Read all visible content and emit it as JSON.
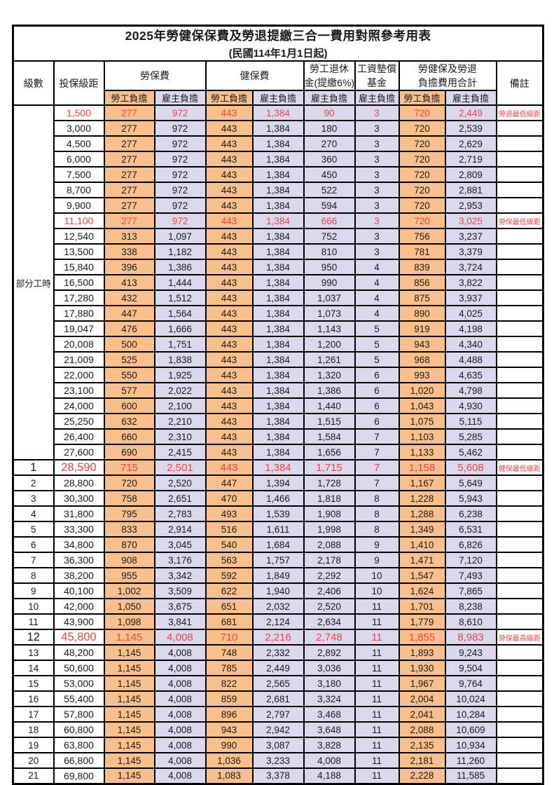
{
  "title": "2025年勞健保保費及勞退提繳三合一費用對照參考用表",
  "subtitle": "(民國114年1月1日起)",
  "colors": {
    "employee_share_bg": "#fac08c",
    "employer_share_bg": "#dbd8ee",
    "highlight_red": "#ef4444",
    "border": "#000000"
  },
  "header": {
    "level": "級數",
    "salary_bracket": "投保級距",
    "labor_insurance": "勞保費",
    "health_insurance": "健保費",
    "pension_line1": "勞工退休",
    "pension_line2": "金(提繳6%)",
    "wage_fund_line1": "工資墊償",
    "wage_fund_line2": "基金",
    "total_line1": "勞健保及勞退",
    "total_line2": "負擔費用合計",
    "note": "備註",
    "employee_share": "勞工負擔",
    "employer_share": "雇主負擔"
  },
  "part_time": {
    "label": "部分工時",
    "rowspan": 23
  },
  "rows": [
    {
      "salary": "1,500",
      "values": [
        "277",
        "972",
        "443",
        "1,384",
        "90",
        "3",
        "720",
        "2,449"
      ],
      "note": "勞退最低級距",
      "red": true
    },
    {
      "salary": "3,000",
      "values": [
        "277",
        "972",
        "443",
        "1,384",
        "180",
        "3",
        "720",
        "2,539"
      ],
      "note": ""
    },
    {
      "salary": "4,500",
      "values": [
        "277",
        "972",
        "443",
        "1,384",
        "270",
        "3",
        "720",
        "2,629"
      ],
      "note": ""
    },
    {
      "salary": "6,000",
      "values": [
        "277",
        "972",
        "443",
        "1,384",
        "360",
        "3",
        "720",
        "2,719"
      ],
      "note": ""
    },
    {
      "salary": "7,500",
      "values": [
        "277",
        "972",
        "443",
        "1,384",
        "450",
        "3",
        "720",
        "2,809"
      ],
      "note": ""
    },
    {
      "salary": "8,700",
      "values": [
        "277",
        "972",
        "443",
        "1,384",
        "522",
        "3",
        "720",
        "2,881"
      ],
      "note": ""
    },
    {
      "salary": "9,900",
      "values": [
        "277",
        "972",
        "443",
        "1,384",
        "594",
        "3",
        "720",
        "2,953"
      ],
      "note": ""
    },
    {
      "salary": "11,100",
      "values": [
        "277",
        "972",
        "443",
        "1,384",
        "666",
        "3",
        "720",
        "3,025"
      ],
      "note": "勞保最低級距",
      "red": true
    },
    {
      "salary": "12,540",
      "values": [
        "313",
        "1,097",
        "443",
        "1,384",
        "752",
        "3",
        "756",
        "3,237"
      ],
      "note": ""
    },
    {
      "salary": "13,500",
      "values": [
        "338",
        "1,182",
        "443",
        "1,384",
        "810",
        "3",
        "781",
        "3,379"
      ],
      "note": ""
    },
    {
      "salary": "15,840",
      "values": [
        "396",
        "1,386",
        "443",
        "1,384",
        "950",
        "4",
        "839",
        "3,724"
      ],
      "note": ""
    },
    {
      "salary": "16,500",
      "values": [
        "413",
        "1,444",
        "443",
        "1,384",
        "990",
        "4",
        "856",
        "3,822"
      ],
      "note": ""
    },
    {
      "salary": "17,280",
      "values": [
        "432",
        "1,512",
        "443",
        "1,384",
        "1,037",
        "4",
        "875",
        "3,937"
      ],
      "note": ""
    },
    {
      "salary": "17,880",
      "values": [
        "447",
        "1,564",
        "443",
        "1,384",
        "1,073",
        "4",
        "890",
        "4,025"
      ],
      "note": ""
    },
    {
      "salary": "19,047",
      "values": [
        "476",
        "1,666",
        "443",
        "1,384",
        "1,143",
        "5",
        "919",
        "4,198"
      ],
      "note": ""
    },
    {
      "salary": "20,008",
      "values": [
        "500",
        "1,751",
        "443",
        "1,384",
        "1,200",
        "5",
        "943",
        "4,340"
      ],
      "note": ""
    },
    {
      "salary": "21,009",
      "values": [
        "525",
        "1,838",
        "443",
        "1,384",
        "1,261",
        "5",
        "968",
        "4,488"
      ],
      "note": ""
    },
    {
      "salary": "22,000",
      "values": [
        "550",
        "1,925",
        "443",
        "1,384",
        "1,320",
        "6",
        "993",
        "4,635"
      ],
      "note": ""
    },
    {
      "salary": "23,100",
      "values": [
        "577",
        "2,022",
        "443",
        "1,384",
        "1,386",
        "6",
        "1,020",
        "4,798"
      ],
      "note": ""
    },
    {
      "salary": "24,000",
      "values": [
        "600",
        "2,100",
        "443",
        "1,384",
        "1,440",
        "6",
        "1,043",
        "4,930"
      ],
      "note": ""
    },
    {
      "salary": "25,250",
      "values": [
        "632",
        "2,210",
        "443",
        "1,384",
        "1,515",
        "6",
        "1,075",
        "5,115"
      ],
      "note": ""
    },
    {
      "salary": "26,400",
      "values": [
        "660",
        "2,310",
        "443",
        "1,384",
        "1,584",
        "7",
        "1,103",
        "5,285"
      ],
      "note": ""
    },
    {
      "salary": "27,600",
      "values": [
        "690",
        "2,415",
        "443",
        "1,384",
        "1,656",
        "7",
        "1,133",
        "5,462"
      ],
      "note": ""
    },
    {
      "level": "1",
      "salary": "28,590",
      "values": [
        "715",
        "2,501",
        "443",
        "1,384",
        "1,715",
        "7",
        "1,158",
        "5,608"
      ],
      "note": "健保最低級距",
      "red": true,
      "big": true
    },
    {
      "level": "2",
      "salary": "28,800",
      "values": [
        "720",
        "2,520",
        "447",
        "1,394",
        "1,728",
        "7",
        "1,167",
        "5,649"
      ],
      "note": ""
    },
    {
      "level": "3",
      "salary": "30,300",
      "values": [
        "758",
        "2,651",
        "470",
        "1,466",
        "1,818",
        "8",
        "1,228",
        "5,943"
      ],
      "note": ""
    },
    {
      "level": "4",
      "salary": "31,800",
      "values": [
        "795",
        "2,783",
        "493",
        "1,539",
        "1,908",
        "8",
        "1,288",
        "6,238"
      ],
      "note": ""
    },
    {
      "level": "5",
      "salary": "33,300",
      "values": [
        "833",
        "2,914",
        "516",
        "1,611",
        "1,998",
        "8",
        "1,349",
        "6,531"
      ],
      "note": ""
    },
    {
      "level": "6",
      "salary": "34,800",
      "values": [
        "870",
        "3,045",
        "540",
        "1,684",
        "2,088",
        "9",
        "1,410",
        "6,826"
      ],
      "note": ""
    },
    {
      "level": "7",
      "salary": "36,300",
      "values": [
        "908",
        "3,176",
        "563",
        "1,757",
        "2,178",
        "9",
        "1,471",
        "7,120"
      ],
      "note": ""
    },
    {
      "level": "8",
      "salary": "38,200",
      "values": [
        "955",
        "3,342",
        "592",
        "1,849",
        "2,292",
        "10",
        "1,547",
        "7,493"
      ],
      "note": ""
    },
    {
      "level": "9",
      "salary": "40,100",
      "values": [
        "1,002",
        "3,509",
        "622",
        "1,940",
        "2,406",
        "10",
        "1,624",
        "7,865"
      ],
      "note": ""
    },
    {
      "level": "10",
      "salary": "42,000",
      "values": [
        "1,050",
        "3,675",
        "651",
        "2,032",
        "2,520",
        "11",
        "1,701",
        "8,238"
      ],
      "note": ""
    },
    {
      "level": "11",
      "salary": "43,900",
      "values": [
        "1,098",
        "3,841",
        "681",
        "2,124",
        "2,634",
        "11",
        "1,779",
        "8,610"
      ],
      "note": ""
    },
    {
      "level": "12",
      "salary": "45,800",
      "values": [
        "1,145",
        "4,008",
        "710",
        "2,216",
        "2,748",
        "11",
        "1,855",
        "8,983"
      ],
      "note": "勞保最高級距",
      "red": true,
      "big": true
    },
    {
      "level": "13",
      "salary": "48,200",
      "values": [
        "1,145",
        "4,008",
        "748",
        "2,332",
        "2,892",
        "11",
        "1,893",
        "9,243"
      ],
      "note": ""
    },
    {
      "level": "14",
      "salary": "50,600",
      "values": [
        "1,145",
        "4,008",
        "785",
        "2,449",
        "3,036",
        "11",
        "1,930",
        "9,504"
      ],
      "note": ""
    },
    {
      "level": "15",
      "salary": "53,000",
      "values": [
        "1,145",
        "4,008",
        "822",
        "2,565",
        "3,180",
        "11",
        "1,967",
        "9,764"
      ],
      "note": ""
    },
    {
      "level": "16",
      "salary": "55,400",
      "values": [
        "1,145",
        "4,008",
        "859",
        "2,681",
        "3,324",
        "11",
        "2,004",
        "10,024"
      ],
      "note": ""
    },
    {
      "level": "17",
      "salary": "57,800",
      "values": [
        "1,145",
        "4,008",
        "896",
        "2,797",
        "3,468",
        "11",
        "2,041",
        "10,284"
      ],
      "note": ""
    },
    {
      "level": "18",
      "salary": "60,800",
      "values": [
        "1,145",
        "4,008",
        "943",
        "2,942",
        "3,648",
        "11",
        "2,088",
        "10,609"
      ],
      "note": ""
    },
    {
      "level": "19",
      "salary": "63,800",
      "values": [
        "1,145",
        "4,008",
        "990",
        "3,087",
        "3,828",
        "11",
        "2,135",
        "10,934"
      ],
      "note": ""
    },
    {
      "level": "20",
      "salary": "66,800",
      "values": [
        "1,145",
        "4,008",
        "1,036",
        "3,233",
        "4,008",
        "11",
        "2,181",
        "11,260"
      ],
      "note": ""
    },
    {
      "level": "21",
      "salary": "69,800",
      "values": [
        "1,145",
        "4,008",
        "1,083",
        "3,378",
        "4,188",
        "11",
        "2,228",
        "11,585"
      ],
      "note": ""
    }
  ]
}
